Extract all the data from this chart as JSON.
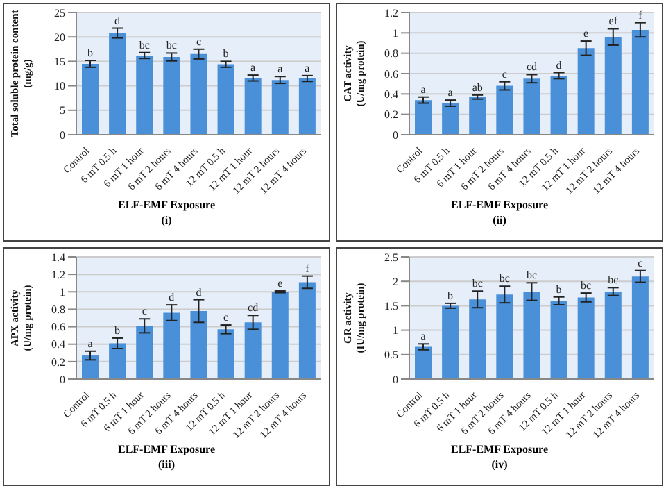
{
  "chart_data": [
    {
      "type": "bar",
      "ylabel": "Total soluble protein content (mg/g)",
      "xlabel": "ELF-EMF Exposure",
      "annotations": [
        "(i)"
      ],
      "categories": [
        "Control",
        "6 mT 0.5 h",
        "6 mT 1 hour",
        "6 mT 2 hours",
        "6 mT 4 hours",
        "12 mT 0.5 h",
        "12 mT 1 hour",
        "12 mT 2 hours",
        "12 mT 4 hours"
      ],
      "color": "#4a90d9",
      "values": [
        14.5,
        20.8,
        16.2,
        15.9,
        16.5,
        14.4,
        11.6,
        11.2,
        11.5
      ],
      "errors": [
        0.7,
        1.0,
        0.6,
        0.8,
        1.0,
        0.6,
        0.6,
        0.7,
        0.6
      ],
      "value_labels": [
        "b",
        "d",
        "bc",
        "bc",
        "c",
        "b",
        "a",
        "a",
        "a"
      ],
      "ylim": [
        0,
        25
      ],
      "yticks": [
        0,
        5,
        10,
        15,
        20,
        25
      ],
      "grid": "y"
    },
    {
      "type": "bar",
      "ylabel": "CAT activity (U/mg protein)",
      "xlabel": "ELF-EMF Exposure",
      "annotations": [
        "(ii)"
      ],
      "categories": [
        "Control",
        "6 mT 0.5 h",
        "6 mT 1 hour",
        "6 mT 2 hours",
        "6 mT 4 hours",
        "12 mT 0.5 h",
        "12 mT 1 hour",
        "12 mT 2 hours",
        "12 mT 4 hours"
      ],
      "color": "#4a90d9",
      "values": [
        0.34,
        0.31,
        0.37,
        0.48,
        0.55,
        0.58,
        0.85,
        0.96,
        1.03
      ],
      "errors": [
        0.03,
        0.03,
        0.02,
        0.04,
        0.04,
        0.03,
        0.07,
        0.08,
        0.07
      ],
      "value_labels": [
        "a",
        "a",
        "ab",
        "c",
        "cd",
        "d",
        "e",
        "ef",
        "f"
      ],
      "ylim": [
        0,
        1.2
      ],
      "yticks": [
        0,
        0.2,
        0.4,
        0.6,
        0.8,
        1,
        1.2
      ],
      "grid": "y"
    },
    {
      "type": "bar",
      "ylabel": "APX activity (U/mg protein)",
      "xlabel": "ELF-EMF Exposure",
      "annotations": [
        "(iii)"
      ],
      "categories": [
        "Control",
        "6 mT 0.5 h",
        "6 mT 1 hour",
        "6 mT 2 hours",
        "6 mT 4 hours",
        "12 mT 0.5 h",
        "12 mT 1 hour",
        "12 mT 2 hours",
        "12 mT 4 hours"
      ],
      "color": "#4a90d9",
      "values": [
        0.27,
        0.41,
        0.61,
        0.76,
        0.78,
        0.57,
        0.65,
        1.0,
        1.11
      ],
      "errors": [
        0.05,
        0.06,
        0.08,
        0.09,
        0.13,
        0.05,
        0.08,
        0.01,
        0.07
      ],
      "value_labels": [
        "a",
        "b",
        "c",
        "d",
        "d",
        "c",
        "cd",
        "e",
        "f"
      ],
      "ylim": [
        0,
        1.4
      ],
      "yticks": [
        0,
        0.2,
        0.4,
        0.6,
        0.8,
        1,
        1.2,
        1.4
      ],
      "grid": "y"
    },
    {
      "type": "bar",
      "ylabel": "GR activity (IU/mg protein)",
      "xlabel": "ELF-EMF Exposure",
      "annotations": [
        "(iv)"
      ],
      "categories": [
        "Control",
        "6 mT 0.5 h",
        "6 mT 1 hour",
        "6 mT 2 hours",
        "6 mT 4 hours",
        "12 mT 0.5 h",
        "12 mT 1 hour",
        "12 mT 2 hours",
        "12 mT 4 hours"
      ],
      "color": "#4a90d9",
      "values": [
        0.66,
        1.5,
        1.63,
        1.73,
        1.79,
        1.6,
        1.67,
        1.79,
        2.1
      ],
      "errors": [
        0.06,
        0.05,
        0.17,
        0.17,
        0.18,
        0.08,
        0.09,
        0.08,
        0.12
      ],
      "value_labels": [
        "a",
        "b",
        "bc",
        "bc",
        "bc",
        "b",
        "bc",
        "bc",
        "c"
      ],
      "ylim": [
        0,
        2.5
      ],
      "yticks": [
        0,
        0.5,
        1,
        1.5,
        2,
        2.5
      ],
      "grid": "y"
    }
  ]
}
